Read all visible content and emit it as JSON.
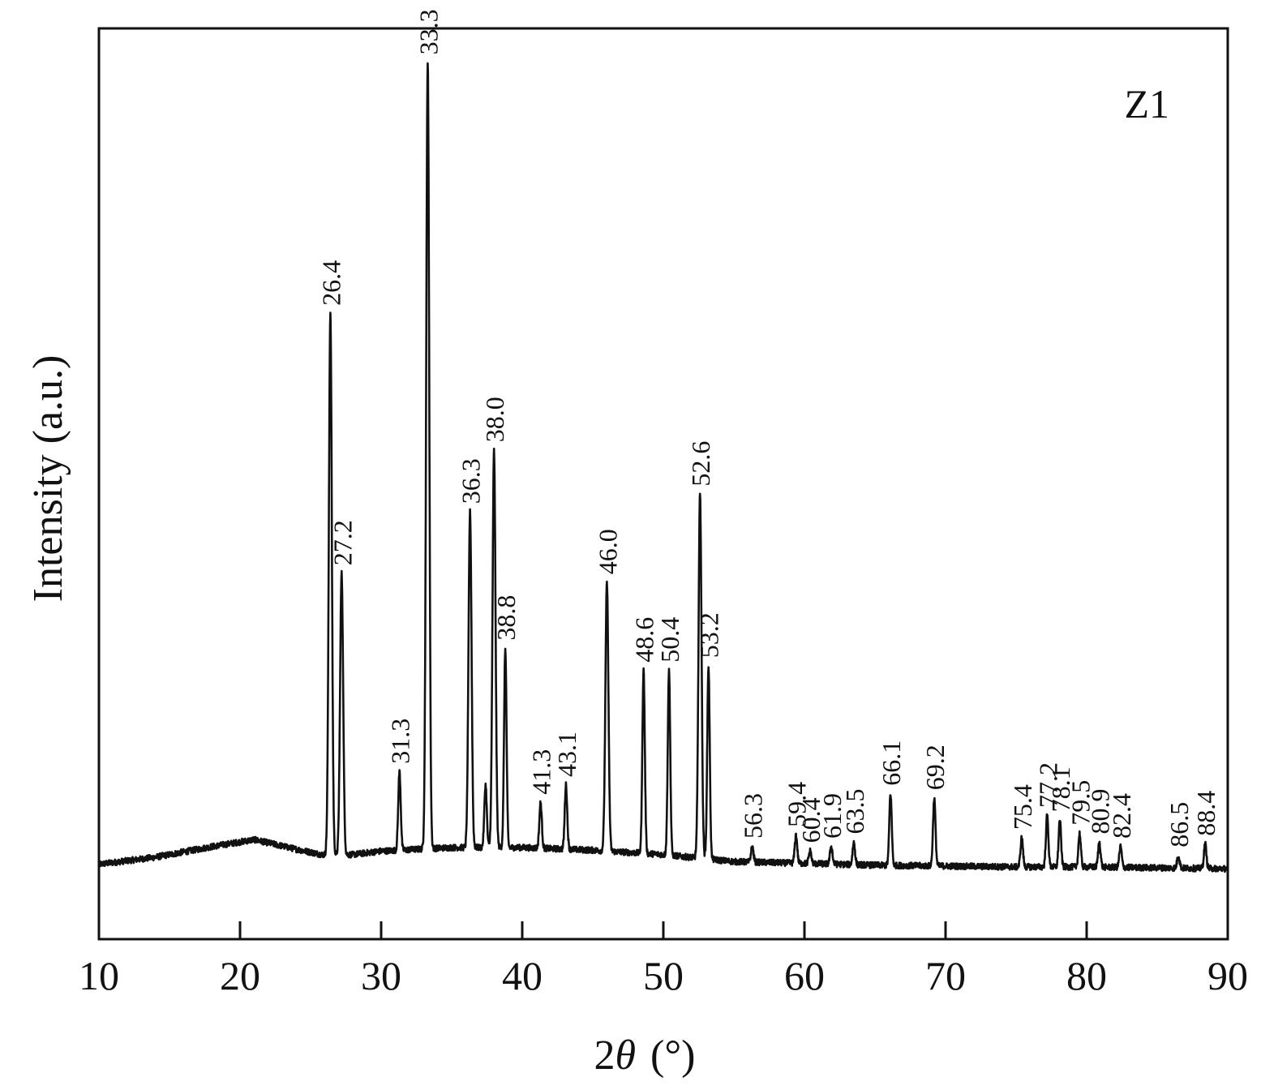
{
  "chart_data": {
    "type": "line",
    "xlabel_prefix": "2",
    "xlabel_symbol": "θ",
    "xlabel_unit": "(°)",
    "ylabel": "Intensity (a.u.)",
    "panel_label": "Z1",
    "xlim": [
      10,
      90
    ],
    "ylim": [
      0,
      100
    ],
    "grid": false,
    "legend": "none",
    "line_color": "#111111",
    "x_ticks": [
      10,
      20,
      30,
      40,
      50,
      60,
      70,
      80,
      90
    ],
    "x_tick_labels": [
      "10",
      "20",
      "30",
      "40",
      "50",
      "60",
      "70",
      "80",
      "90"
    ],
    "baseline": [
      [
        10,
        8.5
      ],
      [
        14,
        9.3
      ],
      [
        18,
        10.5
      ],
      [
        21,
        11.3
      ],
      [
        24,
        10.2
      ],
      [
        25.8,
        9.6
      ],
      [
        28,
        9.6
      ],
      [
        30,
        10.0
      ],
      [
        35,
        10.4
      ],
      [
        40,
        10.4
      ],
      [
        45,
        10.1
      ],
      [
        50,
        9.6
      ],
      [
        55,
        8.8
      ],
      [
        60,
        8.6
      ],
      [
        65,
        8.4
      ],
      [
        70,
        8.3
      ],
      [
        75,
        8.2
      ],
      [
        80,
        8.2
      ],
      [
        85,
        8.1
      ],
      [
        90,
        8.0
      ]
    ],
    "peaks": [
      {
        "x": 26.4,
        "y": 71.0,
        "label": "26.4"
      },
      {
        "x": 27.2,
        "y": 41.5,
        "label": "27.2"
      },
      {
        "x": 31.3,
        "y": 19.0,
        "label": "31.3"
      },
      {
        "x": 33.3,
        "y": 99.5,
        "label": "33.3"
      },
      {
        "x": 36.3,
        "y": 48.5,
        "label": "36.3"
      },
      {
        "x": 37.4,
        "y": 17.5,
        "label": ""
      },
      {
        "x": 38.0,
        "y": 55.5,
        "label": "38.0"
      },
      {
        "x": 38.8,
        "y": 33.0,
        "label": "38.8"
      },
      {
        "x": 41.3,
        "y": 15.5,
        "label": "41.3"
      },
      {
        "x": 43.1,
        "y": 17.5,
        "label": "43.1"
      },
      {
        "x": 46.0,
        "y": 40.5,
        "label": "46.0"
      },
      {
        "x": 48.6,
        "y": 30.5,
        "label": "48.6"
      },
      {
        "x": 50.4,
        "y": 30.5,
        "label": "50.4"
      },
      {
        "x": 52.6,
        "y": 50.5,
        "label": "52.6"
      },
      {
        "x": 53.2,
        "y": 31.0,
        "label": "53.2"
      },
      {
        "x": 56.3,
        "y": 10.5,
        "label": "56.3"
      },
      {
        "x": 59.4,
        "y": 11.8,
        "label": "59.4"
      },
      {
        "x": 60.4,
        "y": 10.0,
        "label": "60.4"
      },
      {
        "x": 61.9,
        "y": 10.5,
        "label": "61.9"
      },
      {
        "x": 63.5,
        "y": 11.0,
        "label": "63.5"
      },
      {
        "x": 66.1,
        "y": 16.5,
        "label": "66.1"
      },
      {
        "x": 69.2,
        "y": 16.0,
        "label": "69.2"
      },
      {
        "x": 75.4,
        "y": 11.5,
        "label": "75.4"
      },
      {
        "x": 77.2,
        "y": 14.0,
        "label": "77.2"
      },
      {
        "x": 78.1,
        "y": 13.5,
        "label": "78.1"
      },
      {
        "x": 79.5,
        "y": 12.0,
        "label": "79.5"
      },
      {
        "x": 80.9,
        "y": 11.0,
        "label": "80.9"
      },
      {
        "x": 82.4,
        "y": 10.5,
        "label": "82.4"
      },
      {
        "x": 86.5,
        "y": 9.5,
        "label": "86.5"
      },
      {
        "x": 88.4,
        "y": 10.8,
        "label": "88.4"
      }
    ]
  }
}
